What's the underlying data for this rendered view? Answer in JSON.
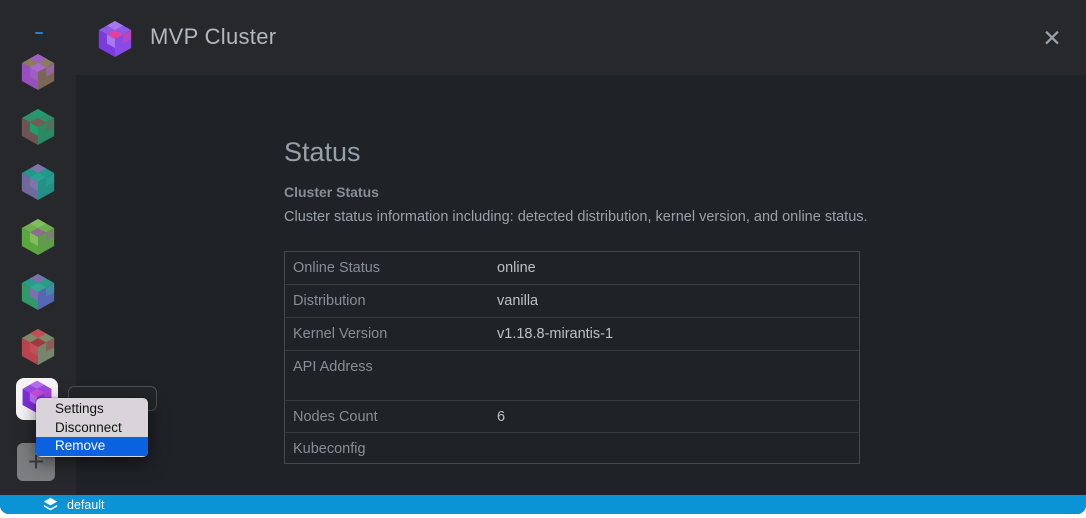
{
  "window": {
    "title": "MVP Cluster",
    "close_icon": "✕",
    "traffic_lights": {
      "red": "#ff5f57",
      "yellow": "#febc2e",
      "green": "#28c840"
    },
    "icon_colors": {
      "top": "#8d5ae8",
      "left": "#7b3be0",
      "right": "#8a4ae8",
      "a1": "#a878f0",
      "a2": "#e0439e"
    }
  },
  "sidebar": {
    "add_icon": "+",
    "clusters": [
      {
        "colors": {
          "top": "#8d7b60",
          "left": "#9a4fc0",
          "right": "#7a6856",
          "a1": "#9d5fc4",
          "a2": "#ab68cf"
        }
      },
      {
        "colors": {
          "top": "#2f8f68",
          "left": "#6d5452",
          "right": "#2a8a64",
          "a1": "#239b70",
          "a2": "#745b54"
        }
      },
      {
        "colors": {
          "top": "#1f9a8a",
          "left": "#6f6a9c",
          "right": "#239286",
          "a1": "#7e76aa",
          "a2": "#2aa392"
        }
      },
      {
        "colors": {
          "top": "#6fae4e",
          "left": "#58a83c",
          "right": "#5f9e48",
          "a1": "#82bd5e",
          "a2": "#8f6b90"
        }
      },
      {
        "colors": {
          "top": "#2a9c8c",
          "left": "#2f9a68",
          "right": "#5668b4",
          "a1": "#7e6fae",
          "a2": "#35a893"
        }
      },
      {
        "colors": {
          "top": "#7d8a6a",
          "left": "#b8434e",
          "right": "#75856e",
          "a1": "#c24e56",
          "a2": "#9e3a44"
        }
      },
      {
        "colors": {
          "top": "#9a48e2",
          "left": "#7b2fd6",
          "right": "#8a3ade",
          "a1": "#b76cf0",
          "a2": "#c84ad8"
        },
        "selected": true
      }
    ]
  },
  "menu": {
    "highlight_color": "#0a62e1",
    "items": [
      {
        "label": "Settings",
        "highlighted": false
      },
      {
        "label": "Disconnect",
        "highlighted": false
      },
      {
        "label": "Remove",
        "highlighted": true
      }
    ]
  },
  "page": {
    "heading": "Status",
    "section_title": "Cluster Status",
    "section_description": "Cluster status information including: detected distribution, kernel version, and online status."
  },
  "status_table": {
    "rows": [
      {
        "label": "Online Status",
        "value": "online"
      },
      {
        "label": "Distribution",
        "value": "vanilla"
      },
      {
        "label": "Kernel Version",
        "value": "v1.18.8-mirantis-1"
      },
      {
        "label": "API Address",
        "value": ""
      },
      {
        "label": "Nodes Count",
        "value": "6"
      },
      {
        "label": "Kubeconfig",
        "value": ""
      }
    ]
  },
  "statusbar": {
    "namespace": "default",
    "bg_color": "#0a93d5"
  }
}
